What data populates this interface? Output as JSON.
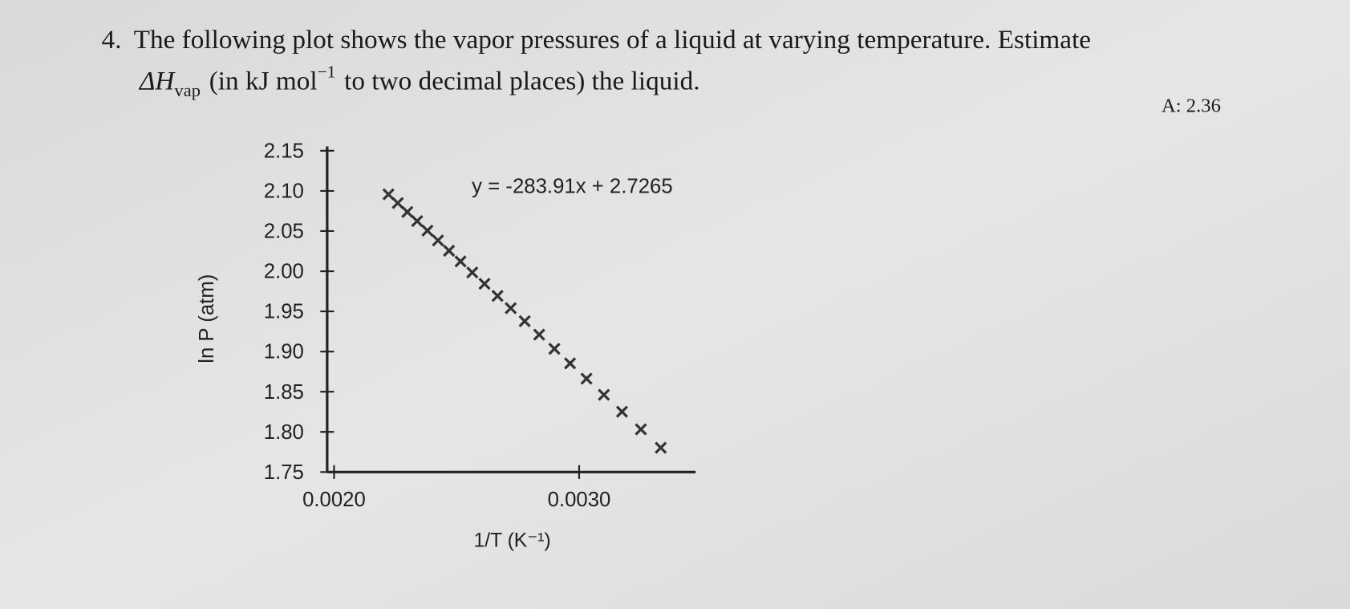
{
  "question": {
    "number": "4.",
    "line1": "The following plot shows the vapor pressures of a liquid at varying temperature. Estimate",
    "symbol": "ΔH",
    "subscript": "vap",
    "unit_open": "(in kJ mol",
    "superscript": "−1",
    "line2_rest": "to two decimal places) the liquid."
  },
  "answer": "A: 2.36",
  "chart_data": {
    "type": "scatter",
    "equation": "y = -283.91x + 2.7265",
    "x_label": "1/T (K⁻¹)",
    "y_label": "ln P (atm)",
    "color": "#333333",
    "x": [
      0.002222,
      0.00226,
      0.002299,
      0.002339,
      0.002381,
      0.002424,
      0.002469,
      0.002516,
      0.002564,
      0.002614,
      0.002667,
      0.002721,
      0.002778,
      0.002837,
      0.002899,
      0.002963,
      0.00303,
      0.003101,
      0.003175,
      0.003252,
      0.003333
    ],
    "values": [
      2.0957,
      2.0849,
      2.0738,
      2.0624,
      2.0505,
      2.0383,
      2.0255,
      2.0122,
      1.9985,
      1.9844,
      1.9693,
      1.954,
      1.9378,
      1.9211,
      1.9034,
      1.8853,
      1.8662,
      1.8461,
      1.8251,
      1.8032,
      1.7802
    ],
    "xlim": [
      0.002,
      0.0035
    ],
    "xticks": [
      {
        "value": 0.002,
        "label": "0.0020"
      },
      {
        "value": 0.003,
        "label": "0.0030"
      }
    ],
    "ylim": [
      1.75,
      2.15
    ],
    "yticks": [
      1.75,
      {
        "value": 1.8,
        "label": "1.80"
      },
      1.85,
      {
        "value": 1.9,
        "label": "1.90"
      },
      1.95,
      {
        "value": 2.0,
        "label": "2.00"
      },
      2.05,
      {
        "value": 2.1,
        "label": "2.10"
      },
      2.15
    ]
  }
}
